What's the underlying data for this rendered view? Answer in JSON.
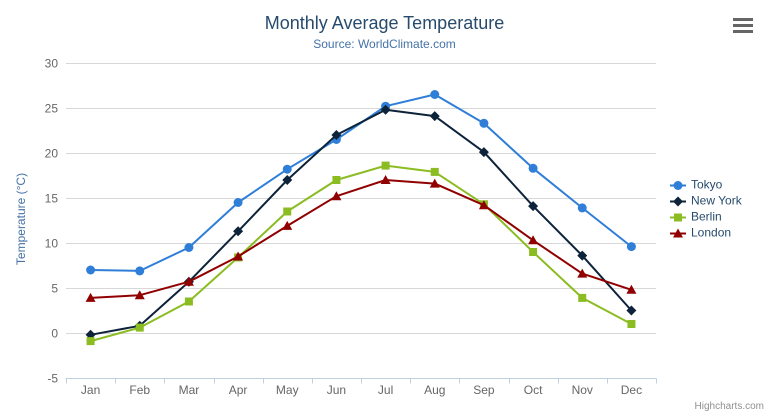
{
  "chart": {
    "credits": "Highcharts.com",
    "icons": {
      "context_menu": "hamburger"
    },
    "colors": {
      "title": "#274b6d",
      "subtitle": "#4572a7",
      "axis_label": "#666666",
      "axis_line": "#c0d0e0",
      "gridline": "#d8d8d8",
      "legend_text": "#274b6d",
      "credits_text": "#909090",
      "context_icon": "#666666",
      "background": "#ffffff"
    }
  },
  "chart_data": {
    "type": "line",
    "title": "Monthly Average Temperature",
    "subtitle": "Source: WorldClimate.com",
    "xlabel": "",
    "ylabel": "Temperature (°C)",
    "categories": [
      "Jan",
      "Feb",
      "Mar",
      "Apr",
      "May",
      "Jun",
      "Jul",
      "Aug",
      "Sep",
      "Oct",
      "Nov",
      "Dec"
    ],
    "ylim": [
      -5,
      30
    ],
    "yticks": [
      -5,
      0,
      5,
      10,
      15,
      20,
      25,
      30
    ],
    "grid": true,
    "legend_position": "right",
    "series": [
      {
        "name": "Tokyo",
        "color": "#2f7ed8",
        "marker": "circle",
        "values": [
          7.0,
          6.9,
          9.5,
          14.5,
          18.2,
          21.5,
          25.2,
          26.5,
          23.3,
          18.3,
          13.9,
          9.6
        ]
      },
      {
        "name": "New York",
        "color": "#0d233a",
        "marker": "diamond",
        "values": [
          -0.2,
          0.8,
          5.7,
          11.3,
          17.0,
          22.0,
          24.8,
          24.1,
          20.1,
          14.1,
          8.6,
          2.5
        ]
      },
      {
        "name": "Berlin",
        "color": "#8bbc21",
        "marker": "square",
        "values": [
          -0.9,
          0.6,
          3.5,
          8.4,
          13.5,
          17.0,
          18.6,
          17.9,
          14.3,
          9.0,
          3.9,
          1.0
        ]
      },
      {
        "name": "London",
        "color": "#910000",
        "marker": "triangle",
        "values": [
          3.9,
          4.2,
          5.7,
          8.5,
          11.9,
          15.2,
          17.0,
          16.6,
          14.2,
          10.3,
          6.6,
          4.8
        ]
      }
    ]
  }
}
